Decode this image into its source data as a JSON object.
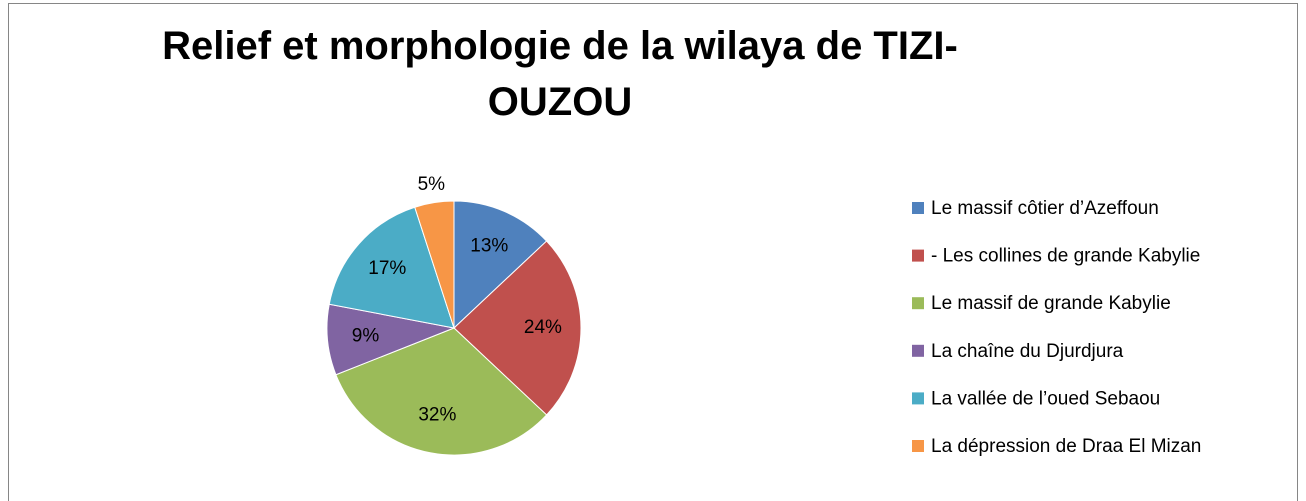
{
  "chart_data": {
    "type": "pie",
    "title": "Relief et morphologie de la wilaya de TIZI-OUZOU",
    "categories": [
      "Le massif côtier d’Azeffoun",
      "- Les collines de grande Kabylie",
      "Le massif de grande Kabylie",
      "La chaîne du Djurdjura",
      "La vallée de l’oued Sebaou",
      "La dépression de Draa El Mizan"
    ],
    "values": [
      13,
      24,
      32,
      9,
      17,
      5
    ],
    "value_labels": [
      "13%",
      "24%",
      "32%",
      "9%",
      "17%",
      "5%"
    ],
    "colors": [
      "#4f81bd",
      "#c0504d",
      "#9bbb59",
      "#8064a2",
      "#4bacc6",
      "#f79646"
    ],
    "legend": "right"
  }
}
